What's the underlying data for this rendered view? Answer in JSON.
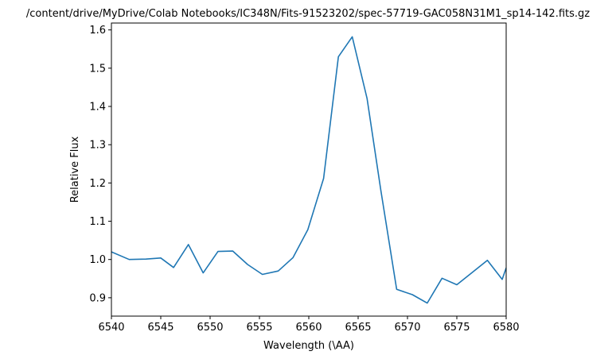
{
  "chart_data": {
    "type": "line",
    "title": "/content/drive/MyDrive/Colab Notebooks/IC348N/Fits-91523202/spec-57719-GAC058N31M1_sp14-142.fits.gz",
    "xlabel": "Wavelength (\\AA)",
    "ylabel": "Relative Flux",
    "xlim": [
      6540,
      6580
    ],
    "ylim": [
      0.852,
      1.618
    ],
    "xticks": [
      6540,
      6545,
      6550,
      6555,
      6560,
      6565,
      6570,
      6575,
      6580
    ],
    "xtick_labels": [
      "6540",
      "6545",
      "6550",
      "6555",
      "6560",
      "6565",
      "6570",
      "6575",
      "6580"
    ],
    "yticks": [
      0.9,
      1.0,
      1.1,
      1.2,
      1.3,
      1.4,
      1.5,
      1.6
    ],
    "ytick_labels": [
      "0.9",
      "1.0",
      "1.1",
      "1.2",
      "1.3",
      "1.4",
      "1.5",
      "1.6"
    ],
    "grid": false,
    "line_color": "#1f77b4",
    "series": [
      {
        "x": [
          6540.0,
          6541.8,
          6543.5,
          6545.0,
          6546.3,
          6547.8,
          6549.3,
          6550.8,
          6552.3,
          6553.8,
          6555.3,
          6556.9,
          6558.4,
          6559.9,
          6561.5,
          6563.0,
          6564.4,
          6565.9,
          6567.3,
          6568.9,
          6570.5,
          6572.0,
          6573.5,
          6575.0,
          6576.5,
          6578.1,
          6579.6,
          6580.0
        ],
        "y": [
          1.02,
          1.0,
          1.001,
          1.004,
          0.979,
          1.039,
          0.965,
          1.021,
          1.022,
          0.987,
          0.961,
          0.97,
          1.005,
          1.078,
          1.212,
          1.53,
          1.582,
          1.421,
          1.181,
          0.922,
          0.908,
          0.886,
          0.951,
          0.934,
          0.965,
          0.998,
          0.948,
          0.978
        ]
      }
    ]
  }
}
